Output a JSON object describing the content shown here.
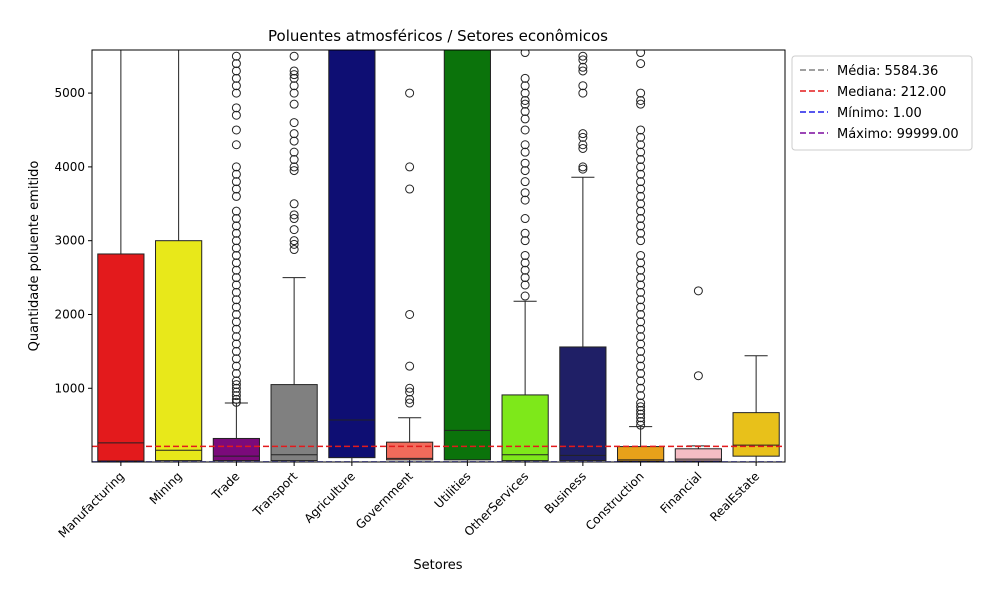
{
  "chart_data": {
    "type": "box",
    "title": "Poluentes atmosféricos / Setores econômicos",
    "xlabel": "Setores",
    "ylabel": "Quantidade poluente emitido",
    "ylim": [
      1,
      5584
    ],
    "yticks": [
      1000,
      2000,
      3000,
      4000,
      5000
    ],
    "categories": [
      "Manufacturing",
      "Mining",
      "Trade",
      "Transport",
      "Agriculture",
      "Government",
      "Utilities",
      "OtherServices",
      "Business",
      "Construction",
      "Financial",
      "RealEstate"
    ],
    "boxes": [
      {
        "name": "Manufacturing",
        "color": "#e31a1c",
        "q1": 15,
        "median": 260,
        "q3": 2820,
        "whisker_low": 1,
        "whisker_high": 5584,
        "outliers": []
      },
      {
        "name": "Mining",
        "color": "#e8e81a",
        "q1": 20,
        "median": 160,
        "q3": 3000,
        "whisker_low": 1,
        "whisker_high": 5584,
        "outliers": []
      },
      {
        "name": "Trade",
        "color": "#7b0a7b",
        "q1": 20,
        "median": 80,
        "q3": 320,
        "whisker_low": 1,
        "whisker_high": 800,
        "outliers": [
          810,
          850,
          900,
          950,
          1000,
          1050,
          1100,
          1200,
          1300,
          1400,
          1500,
          1600,
          1700,
          1800,
          1900,
          2000,
          2100,
          2200,
          2300,
          2400,
          2500,
          2600,
          2700,
          2800,
          2900,
          3000,
          3100,
          3200,
          3300,
          3400,
          3600,
          3700,
          3800,
          3900,
          4000,
          4300,
          4500,
          4700,
          4800,
          5000,
          5100,
          5200,
          5300,
          5400,
          5500
        ]
      },
      {
        "name": "Transport",
        "color": "#808080",
        "q1": 20,
        "median": 100,
        "q3": 1050,
        "whisker_low": 1,
        "whisker_high": 2500,
        "outliers": [
          2880,
          2950,
          3000,
          3150,
          3300,
          3350,
          3500,
          3950,
          4000,
          4100,
          4200,
          4350,
          4450,
          4600,
          4850,
          5000,
          5100,
          5200,
          5250,
          5300,
          5500
        ]
      },
      {
        "name": "Agriculture",
        "color": "#0e0e73",
        "q1": 60,
        "median": 570,
        "q3": 5584,
        "whisker_low": 1,
        "whisker_high": 5584,
        "outliers": []
      },
      {
        "name": "Government",
        "color": "#f26b5b",
        "q1": 30,
        "median": 50,
        "q3": 270,
        "whisker_low": 1,
        "whisker_high": 600,
        "outliers": [
          800,
          850,
          950,
          1000,
          1300,
          2000,
          3700,
          4000,
          5000
        ]
      },
      {
        "name": "Utilities",
        "color": "#0b730b",
        "q1": 30,
        "median": 430,
        "q3": 5584,
        "whisker_low": 1,
        "whisker_high": 5584,
        "outliers": []
      },
      {
        "name": "OtherServices",
        "color": "#7ee81a",
        "q1": 20,
        "median": 100,
        "q3": 910,
        "whisker_low": 1,
        "whisker_high": 2180,
        "outliers": [
          2250,
          2400,
          2500,
          2600,
          2700,
          2800,
          3000,
          3100,
          3300,
          3550,
          3650,
          3800,
          3950,
          4050,
          4200,
          4300,
          4500,
          4650,
          4750,
          4850,
          4900,
          5000,
          5100,
          5200,
          5550
        ]
      },
      {
        "name": "Business",
        "color": "#1f1f66",
        "q1": 20,
        "median": 90,
        "q3": 1560,
        "whisker_low": 1,
        "whisker_high": 3860,
        "outliers": [
          3970,
          4000,
          4250,
          4300,
          4400,
          4450,
          5000,
          5100,
          5300,
          5350,
          5450,
          5500
        ]
      },
      {
        "name": "Construction",
        "color": "#e8a11a",
        "q1": 10,
        "median": 30,
        "q3": 210,
        "whisker_low": 1,
        "whisker_high": 480,
        "outliers": [
          500,
          550,
          600,
          650,
          700,
          750,
          800,
          900,
          1000,
          1100,
          1200,
          1300,
          1400,
          1500,
          1600,
          1700,
          1800,
          1900,
          2000,
          2100,
          2200,
          2300,
          2400,
          2500,
          2600,
          2700,
          2800,
          3000,
          3100,
          3200,
          3300,
          3400,
          3500,
          3600,
          3700,
          3800,
          3900,
          4000,
          4100,
          4200,
          4300,
          4400,
          4500,
          4850,
          4900,
          5000,
          5400,
          5550
        ]
      },
      {
        "name": "Financial",
        "color": "#f4bcc4",
        "q1": 15,
        "median": 40,
        "q3": 180,
        "whisker_low": 1,
        "whisker_high": 220,
        "outliers": [
          1170,
          2320
        ]
      },
      {
        "name": "RealEstate",
        "color": "#e8c11a",
        "q1": 80,
        "median": 230,
        "q3": 670,
        "whisker_low": 1,
        "whisker_high": 1440,
        "outliers": []
      }
    ],
    "reference_lines": [
      {
        "label": "Média: 5584.36",
        "value": 5584.36,
        "color": "#808080"
      },
      {
        "label": "Mediana: 212.00",
        "value": 212.0,
        "color": "#e31a1c"
      },
      {
        "label": "Mínimo: 1.00",
        "value": 1.0,
        "color": "#1f1fe8"
      },
      {
        "label": "Máximo: 99999.00",
        "value": 99999.0,
        "color": "#7b0a9e"
      }
    ],
    "legend_position": "outside-top-right",
    "grid": false
  }
}
